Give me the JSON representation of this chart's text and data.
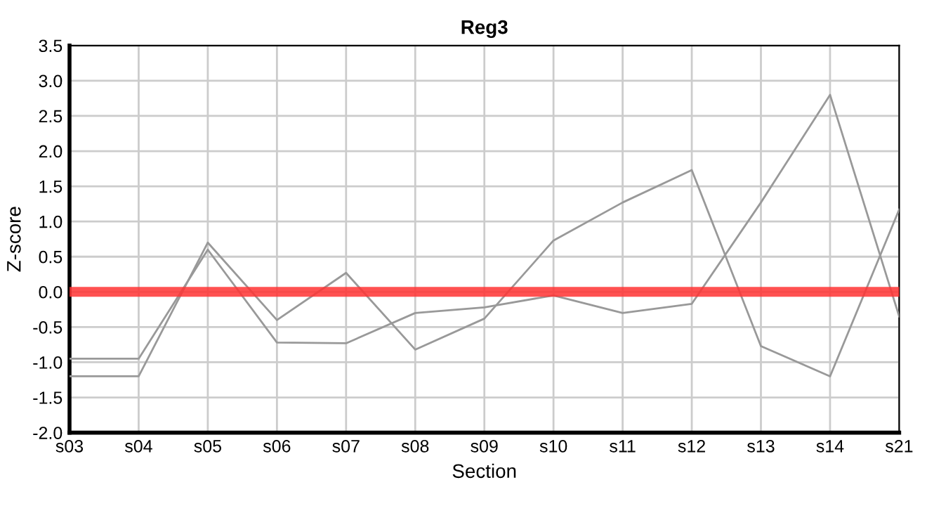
{
  "chart_data": {
    "type": "line",
    "title": "Reg3",
    "xlabel": "Section",
    "ylabel": "Z-score",
    "categories": [
      "s03",
      "s04",
      "s05",
      "s06",
      "s07",
      "s08",
      "s09",
      "s10",
      "s11",
      "s12",
      "s13",
      "s14",
      "s21"
    ],
    "series": [
      {
        "color": "#999999",
        "values": [
          -0.95,
          -0.95,
          0.6,
          -0.72,
          -0.73,
          -0.3,
          -0.22,
          -0.05,
          -0.3,
          -0.17,
          1.27,
          2.8,
          -0.35
        ]
      },
      {
        "color": "#999999",
        "values": [
          -1.2,
          -1.2,
          0.7,
          -0.4,
          0.27,
          -0.82,
          -0.38,
          0.73,
          1.27,
          1.73,
          -0.77,
          -1.2,
          1.17
        ]
      }
    ],
    "ylim": [
      -2.0,
      3.5
    ],
    "yticks": [
      {
        "value": -2.0,
        "label": "-2.0"
      },
      {
        "value": -1.5,
        "label": "-1.5"
      },
      {
        "value": -1.0,
        "label": "-1.0"
      },
      {
        "value": -0.5,
        "label": "-0.5"
      },
      {
        "value": 0.0,
        "label": "0.0"
      },
      {
        "value": 0.5,
        "label": "0.5"
      },
      {
        "value": 1.0,
        "label": "1.0"
      },
      {
        "value": 1.5,
        "label": "1.5"
      },
      {
        "value": 2.0,
        "label": "2.0"
      },
      {
        "value": 2.5,
        "label": "2.5"
      },
      {
        "value": 3.0,
        "label": "3.0"
      },
      {
        "value": 3.5,
        "label": "3.5"
      }
    ],
    "ref_lines": [
      {
        "axis": "y",
        "value": 0.0,
        "color": "#ff3333"
      }
    ],
    "grid": true,
    "line_style": "solid"
  }
}
